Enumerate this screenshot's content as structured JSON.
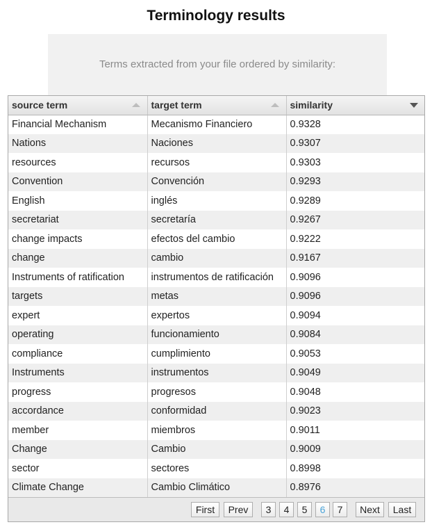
{
  "page": {
    "title": "Terminology results",
    "intro": "Terms extracted from your file ordered by similarity:"
  },
  "table": {
    "columns": {
      "source": "source term",
      "target": "target term",
      "similarity": "similarity"
    },
    "sort": {
      "column": "similarity",
      "direction": "descending"
    },
    "rows": [
      {
        "source": "Financial Mechanism",
        "target": "Mecanismo Financiero",
        "similarity": "0.9328"
      },
      {
        "source": "Nations",
        "target": "Naciones",
        "similarity": "0.9307"
      },
      {
        "source": "resources",
        "target": "recursos",
        "similarity": "0.9303"
      },
      {
        "source": "Convention",
        "target": "Convención",
        "similarity": "0.9293"
      },
      {
        "source": "English",
        "target": "inglés",
        "similarity": "0.9289"
      },
      {
        "source": "secretariat",
        "target": "secretaría",
        "similarity": "0.9267"
      },
      {
        "source": "change impacts",
        "target": "efectos del cambio",
        "similarity": "0.9222"
      },
      {
        "source": "change",
        "target": "cambio",
        "similarity": "0.9167"
      },
      {
        "source": "Instruments of ratification",
        "target": "instrumentos de ratificación",
        "similarity": "0.9096"
      },
      {
        "source": "targets",
        "target": "metas",
        "similarity": "0.9096"
      },
      {
        "source": "expert",
        "target": "expertos",
        "similarity": "0.9094"
      },
      {
        "source": "operating",
        "target": "funcionamiento",
        "similarity": "0.9084"
      },
      {
        "source": "compliance",
        "target": "cumplimiento",
        "similarity": "0.9053"
      },
      {
        "source": "Instruments",
        "target": "instrumentos",
        "similarity": "0.9049"
      },
      {
        "source": "progress",
        "target": "progresos",
        "similarity": "0.9048"
      },
      {
        "source": "accordance",
        "target": "conformidad",
        "similarity": "0.9023"
      },
      {
        "source": "member",
        "target": "miembros",
        "similarity": "0.9011"
      },
      {
        "source": "Change",
        "target": "Cambio",
        "similarity": "0.9009"
      },
      {
        "source": "sector",
        "target": "sectores",
        "similarity": "0.8998"
      },
      {
        "source": "Climate Change",
        "target": "Cambio Climático",
        "similarity": "0.8976"
      }
    ]
  },
  "pager": {
    "first": "First",
    "prev": "Prev",
    "pages": [
      "3",
      "4",
      "5",
      "6",
      "7"
    ],
    "current": "6",
    "next": "Next",
    "last": "Last"
  },
  "colors": {
    "current_page": "#4aa3d8",
    "row_alt": "#efefef"
  }
}
